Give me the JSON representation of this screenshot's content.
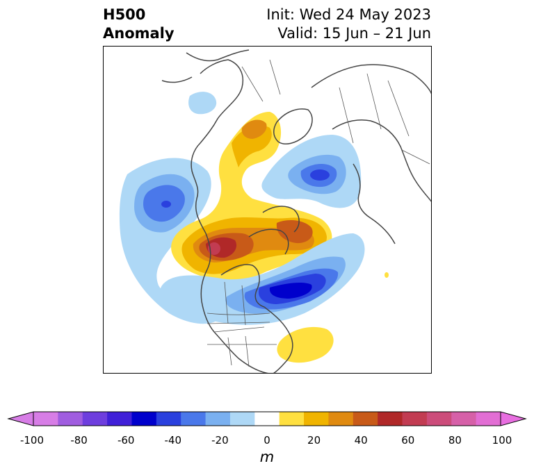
{
  "title": {
    "left_line1": "H500",
    "left_line2": "Anomaly",
    "right_line1": "Init: Wed 24 May 2023",
    "right_line2": "Valid: 15 Jun – 21 Jun"
  },
  "colorbar": {
    "unit": "m",
    "ticks": [
      "-100",
      "-80",
      "-60",
      "-40",
      "-20",
      "0",
      "20",
      "40",
      "60",
      "80",
      "100"
    ],
    "colors": [
      "#d77de6",
      "#a05de0",
      "#6e3ede",
      "#4020d8",
      "#0000cc",
      "#2a40de",
      "#4a78ea",
      "#7ab0f0",
      "#aed8f6",
      "#ffffff",
      "#ffe040",
      "#f0b400",
      "#e08a10",
      "#c85a18",
      "#b02828",
      "#c23c52",
      "#cc4c7a",
      "#d660a8",
      "#e26ed4"
    ],
    "min_color": "#d77de6",
    "max_color": "#e86ee0"
  },
  "map": {
    "projection": "polar-stereographic",
    "region": "North America / North Pole",
    "coast_color": "#444444"
  }
}
